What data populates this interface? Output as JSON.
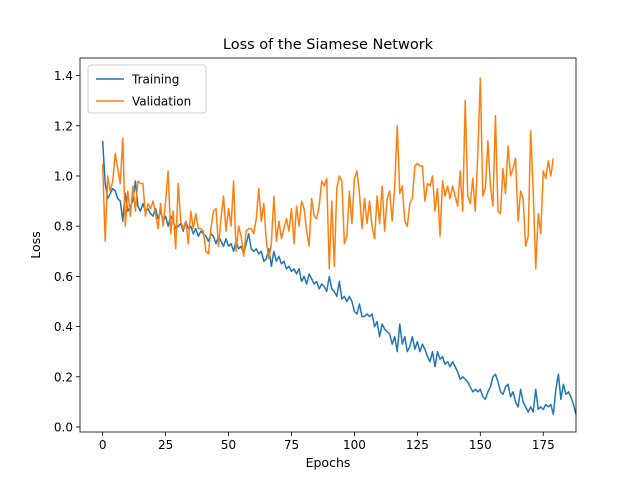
{
  "chart_data": {
    "type": "line",
    "title": "Loss of the Siamese Network",
    "xlabel": "Epochs",
    "ylabel": "Loss",
    "xlim": [
      -9,
      188
    ],
    "ylim": [
      -0.02,
      1.47
    ],
    "xticks": [
      0,
      25,
      50,
      75,
      100,
      125,
      150,
      175
    ],
    "xtick_labels": [
      "0",
      "25",
      "50",
      "75",
      "100",
      "125",
      "150",
      "175"
    ],
    "yticks": [
      0.0,
      0.2,
      0.4,
      0.6,
      0.8,
      1.0,
      1.2,
      1.4
    ],
    "ytick_labels": [
      "0.0",
      "0.2",
      "0.4",
      "0.6",
      "0.8",
      "1.0",
      "1.2",
      "1.4"
    ],
    "grid": false,
    "legend_position": "top-left",
    "series": [
      {
        "name": "Training",
        "color": "#1f77b4",
        "values": [
          1.14,
          0.97,
          0.91,
          0.93,
          0.95,
          0.94,
          0.91,
          0.9,
          0.82,
          0.93,
          0.86,
          0.88,
          0.9,
          0.98,
          0.88,
          0.86,
          0.89,
          0.86,
          0.87,
          0.85,
          0.84,
          0.87,
          0.83,
          0.86,
          0.82,
          0.84,
          0.8,
          0.84,
          0.82,
          0.79,
          0.8,
          0.81,
          0.78,
          0.82,
          0.79,
          0.8,
          0.77,
          0.79,
          0.76,
          0.78,
          0.77,
          0.76,
          0.74,
          0.77,
          0.76,
          0.73,
          0.76,
          0.74,
          0.72,
          0.75,
          0.72,
          0.73,
          0.7,
          0.74,
          0.71,
          0.72,
          0.69,
          0.73,
          0.77,
          0.71,
          0.7,
          0.71,
          0.69,
          0.7,
          0.66,
          0.67,
          0.71,
          0.64,
          0.7,
          0.66,
          0.68,
          0.65,
          0.66,
          0.63,
          0.64,
          0.62,
          0.63,
          0.61,
          0.63,
          0.58,
          0.6,
          0.57,
          0.61,
          0.59,
          0.57,
          0.58,
          0.55,
          0.57,
          0.56,
          0.54,
          0.6,
          0.55,
          0.54,
          0.52,
          0.58,
          0.51,
          0.52,
          0.5,
          0.52,
          0.5,
          0.46,
          0.45,
          0.49,
          0.44,
          0.44,
          0.45,
          0.44,
          0.45,
          0.4,
          0.42,
          0.36,
          0.41,
          0.39,
          0.38,
          0.37,
          0.33,
          0.36,
          0.3,
          0.41,
          0.33,
          0.36,
          0.3,
          0.32,
          0.36,
          0.31,
          0.34,
          0.3,
          0.33,
          0.31,
          0.28,
          0.26,
          0.3,
          0.24,
          0.3,
          0.27,
          0.28,
          0.25,
          0.26,
          0.24,
          0.26,
          0.24,
          0.22,
          0.19,
          0.2,
          0.19,
          0.18,
          0.16,
          0.14,
          0.15,
          0.14,
          0.15,
          0.12,
          0.11,
          0.14,
          0.16,
          0.2,
          0.21,
          0.18,
          0.14,
          0.13,
          0.16,
          0.17,
          0.12,
          0.14,
          0.1,
          0.08,
          0.15,
          0.1,
          0.08,
          0.06,
          0.08,
          0.06,
          0.15,
          0.07,
          0.08,
          0.07,
          0.09,
          0.08,
          0.09,
          0.05,
          0.15,
          0.21,
          0.11,
          0.17,
          0.13,
          0.14,
          0.12,
          0.09,
          0.05
        ]
      },
      {
        "name": "Validation",
        "color": "#ff7f0e",
        "values": [
          1.05,
          0.74,
          1.0,
          0.94,
          0.98,
          1.09,
          1.03,
          0.97,
          1.15,
          0.8,
          0.94,
          0.84,
          0.96,
          0.86,
          0.98,
          0.97,
          0.97,
          0.84,
          0.89,
          0.87,
          0.9,
          0.85,
          0.79,
          0.89,
          0.8,
          0.9,
          1.02,
          0.77,
          0.86,
          0.71,
          0.97,
          0.82,
          0.79,
          0.82,
          0.73,
          0.86,
          0.79,
          0.85,
          0.79,
          0.79,
          0.78,
          0.7,
          0.69,
          0.79,
          0.86,
          0.87,
          0.72,
          0.83,
          0.92,
          0.78,
          0.87,
          0.8,
          0.98,
          0.7,
          0.8,
          0.76,
          0.68,
          0.78,
          0.79,
          0.79,
          0.77,
          0.83,
          0.95,
          0.82,
          0.89,
          0.74,
          0.67,
          0.73,
          0.92,
          0.74,
          0.82,
          0.75,
          0.79,
          0.83,
          0.78,
          0.87,
          0.73,
          0.88,
          0.8,
          0.9,
          0.87,
          0.78,
          0.72,
          0.91,
          0.84,
          0.83,
          0.88,
          0.98,
          0.96,
          0.99,
          0.63,
          0.9,
          0.64,
          0.95,
          1.0,
          0.98,
          0.73,
          0.76,
          0.94,
          0.81,
          0.99,
          1.02,
          0.93,
          0.79,
          0.91,
          0.81,
          0.9,
          0.8,
          0.75,
          0.92,
          0.81,
          0.96,
          0.78,
          0.91,
          0.94,
          0.82,
          0.96,
          1.2,
          0.93,
          0.96,
          0.82,
          0.8,
          0.89,
          0.91,
          1.04,
          1.05,
          1.04,
          1.04,
          0.9,
          0.97,
          0.96,
          1.0,
          0.86,
          0.95,
          0.76,
          0.98,
          0.92,
          0.96,
          0.91,
          0.96,
          0.92,
          0.88,
          1.02,
          0.86,
          1.3,
          0.92,
          0.89,
          0.99,
          0.86,
          1.09,
          1.39,
          0.92,
          0.95,
          1.14,
          0.96,
          0.88,
          1.24,
          0.86,
          0.85,
          1.03,
          0.93,
          1.12,
          1.0,
          1.03,
          1.07,
          0.82,
          0.94,
          0.91,
          0.72,
          0.76,
          1.18,
          0.94,
          0.63,
          0.85,
          0.77,
          1.02,
          0.99,
          1.06,
          1.0,
          1.07
        ]
      }
    ]
  }
}
